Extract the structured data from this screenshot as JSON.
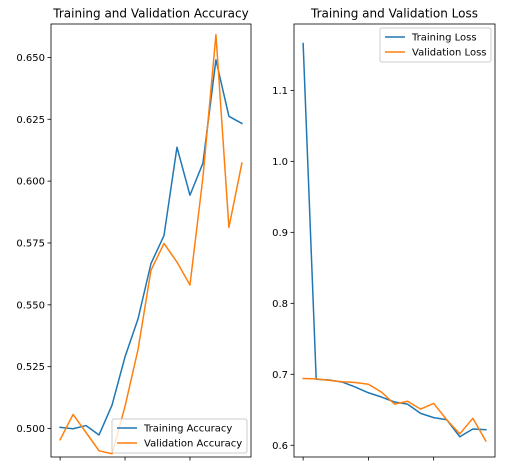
{
  "chart_data": [
    {
      "type": "line",
      "title": "Training and Validation Accuracy",
      "xlabel": "",
      "ylabel": "",
      "x": [
        0,
        1,
        2,
        3,
        4,
        5,
        6,
        7,
        8,
        9,
        10,
        11,
        12,
        13,
        14
      ],
      "xlim": [
        -0.7,
        14.7
      ],
      "xticks": [
        0,
        5,
        10
      ],
      "ylim": [
        0.4885,
        0.6635
      ],
      "yticks": [
        "0.500",
        "0.525",
        "0.550",
        "0.575",
        "0.600",
        "0.625",
        "0.650"
      ],
      "grid": false,
      "legend_position": "lower-right",
      "series": [
        {
          "name": "Training Accuracy",
          "color": "#1f77b4",
          "values": [
            0.5005,
            0.4999,
            0.5012,
            0.4974,
            0.5095,
            0.529,
            0.5443,
            0.5667,
            0.578,
            0.6137,
            0.5943,
            0.6073,
            0.649,
            0.6262,
            0.6233
          ]
        },
        {
          "name": "Validation Accuracy",
          "color": "#ff7f0e",
          "values": [
            0.4955,
            0.5057,
            0.4984,
            0.491,
            0.4898,
            0.509,
            0.5319,
            0.564,
            0.5748,
            0.5673,
            0.558,
            0.6016,
            0.6592,
            0.5813,
            0.6073
          ]
        }
      ]
    },
    {
      "type": "line",
      "title": "Training and Validation Loss",
      "xlabel": "",
      "ylabel": "",
      "x": [
        0,
        1,
        2,
        3,
        4,
        5,
        6,
        7,
        8,
        9,
        10,
        11,
        12,
        13,
        14
      ],
      "xlim": [
        -0.7,
        14.7
      ],
      "xticks": [
        0,
        5,
        10
      ],
      "ylim": [
        0.5835,
        1.1935
      ],
      "yticks": [
        "0.6",
        "0.7",
        "0.8",
        "0.9",
        "1.0",
        "1.1"
      ],
      "grid": false,
      "legend_position": "upper-right",
      "series": [
        {
          "name": "Training Loss",
          "color": "#1f77b4",
          "values": [
            1.166,
            0.693,
            0.692,
            0.689,
            0.682,
            0.674,
            0.668,
            0.661,
            0.658,
            0.645,
            0.639,
            0.636,
            0.612,
            0.623,
            0.622
          ]
        },
        {
          "name": "Validation Loss",
          "color": "#ff7f0e",
          "values": [
            0.694,
            0.6935,
            0.6915,
            0.6895,
            0.6885,
            0.686,
            0.675,
            0.658,
            0.662,
            0.651,
            0.659,
            0.636,
            0.616,
            0.638,
            0.606
          ]
        }
      ]
    }
  ]
}
